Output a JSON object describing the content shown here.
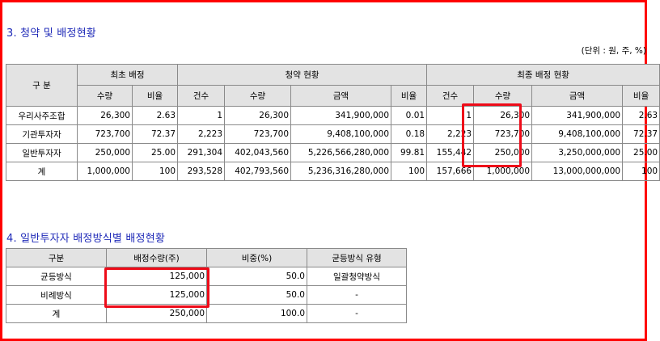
{
  "section3": {
    "title": "3. 청약 및 배정현황",
    "unit": "(단위 : 원, 주, %)",
    "headers": {
      "category": "구 분",
      "initial": "최초 배정",
      "subscription": "청약 현황",
      "final": "최종 배정 현황",
      "qty": "수량",
      "ratio": "비율",
      "count": "건수",
      "amount": "금액"
    },
    "rows": [
      {
        "name": "우리사주조합",
        "init_qty": "26,300",
        "init_ratio": "2.63",
        "sub_count": "1",
        "sub_qty": "26,300",
        "sub_amount": "341,900,000",
        "sub_ratio": "0.01",
        "fin_count": "1",
        "fin_qty": "26,300",
        "fin_amount": "341,900,000",
        "fin_ratio": "2.63"
      },
      {
        "name": "기관투자자",
        "init_qty": "723,700",
        "init_ratio": "72.37",
        "sub_count": "2,223",
        "sub_qty": "723,700",
        "sub_amount": "9,408,100,000",
        "sub_ratio": "0.18",
        "fin_count": "2,223",
        "fin_qty": "723,700",
        "fin_amount": "9,408,100,000",
        "fin_ratio": "72.37"
      },
      {
        "name": "일반투자자",
        "init_qty": "250,000",
        "init_ratio": "25.00",
        "sub_count": "291,304",
        "sub_qty": "402,043,560",
        "sub_amount": "5,226,566,280,000",
        "sub_ratio": "99.81",
        "fin_count": "155,442",
        "fin_qty": "250,000",
        "fin_amount": "3,250,000,000",
        "fin_ratio": "25.00"
      },
      {
        "name": "계",
        "init_qty": "1,000,000",
        "init_ratio": "100",
        "sub_count": "293,528",
        "sub_qty": "402,793,560",
        "sub_amount": "5,236,316,280,000",
        "sub_ratio": "100",
        "fin_count": "157,666",
        "fin_qty": "1,000,000",
        "fin_amount": "13,000,000,000",
        "fin_ratio": "100"
      }
    ]
  },
  "section4": {
    "title": "4. 일반투자자 배정방식별 배정현황",
    "headers": {
      "category": "구분",
      "alloc_qty": "배정수량(주)",
      "weight": "비중(%)",
      "equal_type": "균등방식 유형"
    },
    "rows": [
      {
        "name": "균등방식",
        "qty": "125,000",
        "weight": "50.0",
        "type": "일괄청약방식"
      },
      {
        "name": "비례방식",
        "qty": "125,000",
        "weight": "50.0",
        "type": "-"
      },
      {
        "name": "계",
        "qty": "250,000",
        "weight": "100.0",
        "type": "-"
      }
    ]
  }
}
